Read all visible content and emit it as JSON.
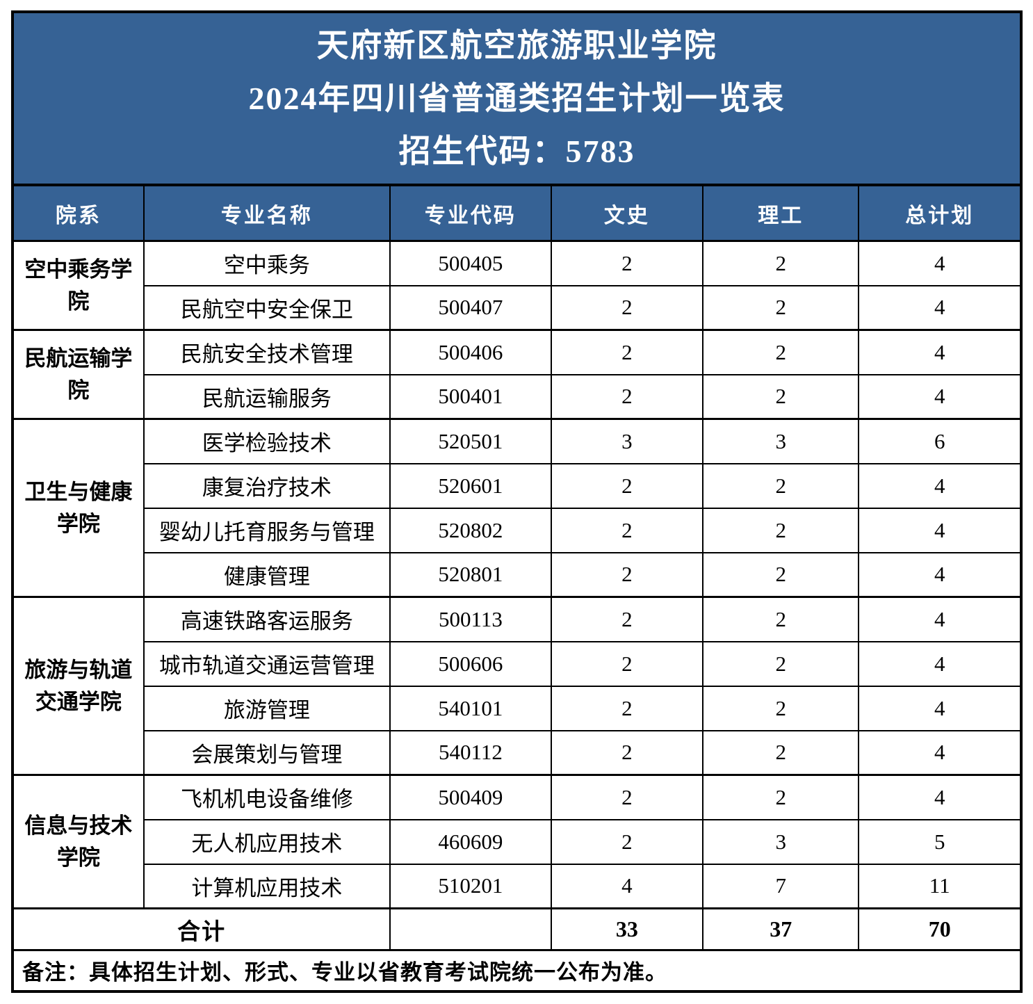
{
  "colors": {
    "accent_blue": "#366295",
    "border_black": "#000000",
    "faint_divider": "#cccccc",
    "title_text": "#ffffff"
  },
  "title": {
    "line1": "天府新区航空旅游职业学院",
    "line2": "2024年四川省普通类招生计划一览表",
    "line3": "招生代码：5783"
  },
  "table": {
    "columns": [
      "院系",
      "专业名称",
      "专业代码",
      "文史",
      "理工",
      "总计划"
    ],
    "groups": [
      {
        "college": "空中乘务学院",
        "majors": [
          {
            "name": "空中乘务",
            "code": "500405",
            "wenshi": "2",
            "ligong": "2",
            "total": "4"
          },
          {
            "name": "民航空中安全保卫",
            "code": "500407",
            "wenshi": "2",
            "ligong": "2",
            "total": "4"
          }
        ]
      },
      {
        "college": "民航运输学院",
        "majors": [
          {
            "name": "民航安全技术管理",
            "code": "500406",
            "wenshi": "2",
            "ligong": "2",
            "total": "4"
          },
          {
            "name": "民航运输服务",
            "code": "500401",
            "wenshi": "2",
            "ligong": "2",
            "total": "4"
          }
        ]
      },
      {
        "college": "卫生与健康学院",
        "majors": [
          {
            "name": "医学检验技术",
            "code": "520501",
            "wenshi": "3",
            "ligong": "3",
            "total": "6"
          },
          {
            "name": "康复治疗技术",
            "code": "520601",
            "wenshi": "2",
            "ligong": "2",
            "total": "4"
          },
          {
            "name": "婴幼儿托育服务与管理",
            "code": "520802",
            "wenshi": "2",
            "ligong": "2",
            "total": "4"
          },
          {
            "name": "健康管理",
            "code": "520801",
            "wenshi": "2",
            "ligong": "2",
            "total": "4"
          }
        ]
      },
      {
        "college": "旅游与轨道交通学院",
        "majors": [
          {
            "name": "高速铁路客运服务",
            "code": "500113",
            "wenshi": "2",
            "ligong": "2",
            "total": "4"
          },
          {
            "name": "城市轨道交通运营管理",
            "code": "500606",
            "wenshi": "2",
            "ligong": "2",
            "total": "4"
          },
          {
            "name": "旅游管理",
            "code": "540101",
            "wenshi": "2",
            "ligong": "2",
            "total": "4"
          },
          {
            "name": "会展策划与管理",
            "code": "540112",
            "wenshi": "2",
            "ligong": "2",
            "total": "4"
          }
        ]
      },
      {
        "college": "信息与技术学院",
        "majors": [
          {
            "name": "飞机机电设备维修",
            "code": "500409",
            "wenshi": "2",
            "ligong": "2",
            "total": "4"
          },
          {
            "name": "无人机应用技术",
            "code": "460609",
            "wenshi": "2",
            "ligong": "3",
            "total": "5"
          },
          {
            "name": "计算机应用技术",
            "code": "510201",
            "wenshi": "4",
            "ligong": "7",
            "total": "11"
          }
        ]
      }
    ],
    "total_row": {
      "label": "合计",
      "code": "",
      "wenshi": "33",
      "ligong": "37",
      "total": "70"
    },
    "note": "备注：具体招生计划、形式、专业以省教育考试院统一公布为准。"
  }
}
